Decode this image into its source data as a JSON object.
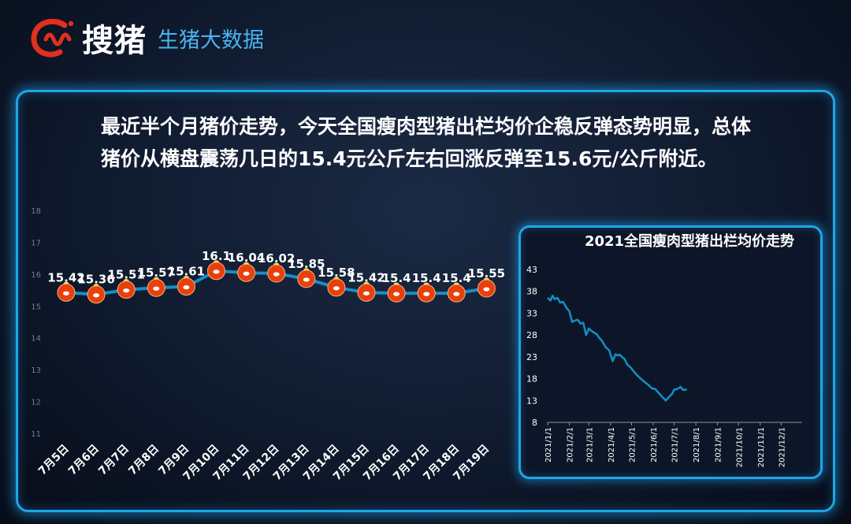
{
  "header": {
    "brand": "搜猪",
    "subtitle": "生猪大数据"
  },
  "description": "最近半个月猪价走势，今天全国瘦肉型猪出栏均价企稳反弹态势明显，总体猪价从横盘震荡几日的15.4元公斤左右回涨反弹至15.6元/公斤附近。",
  "colors": {
    "accent": "#1fa5e8",
    "line": "#1390c8",
    "marker": "#e8400c",
    "subtitle": "#4ab3f0"
  },
  "chart_data": [
    {
      "type": "line",
      "categories": [
        "7月5日",
        "7月6日",
        "7月7日",
        "7月8日",
        "7月9日",
        "7月10日",
        "7月11日",
        "7月12日",
        "7月13日",
        "7月14日",
        "7月15日",
        "7月16日",
        "7月17日",
        "7月18日",
        "7月19日"
      ],
      "values": [
        15.42,
        15.36,
        15.51,
        15.57,
        15.61,
        16.1,
        16.04,
        16.02,
        15.85,
        15.58,
        15.42,
        15.4,
        15.4,
        15.4,
        15.55
      ],
      "data_labels": [
        "15.42",
        "15.36",
        "15.51",
        "15.57",
        "15.61",
        "16.1",
        "16.04",
        "16.02",
        "15.85",
        "15.58",
        "15.42",
        "15.4",
        "15.4",
        "15.4",
        "15.55"
      ],
      "yticks": [
        "11",
        "12",
        "13",
        "14",
        "15",
        "16",
        "17",
        "18"
      ],
      "ylim": [
        11,
        18
      ],
      "marker": "pig-icon",
      "grid": false
    },
    {
      "type": "line",
      "title": "2021全国瘦肉型猪出栏均价走势",
      "x_start": "2021/1/1",
      "x_end": "2021/12/31",
      "x_ticks": [
        "2021/1/1",
        "2021/2/1",
        "2021/3/1",
        "2021/4/1",
        "2021/5/1",
        "2021/6/1",
        "2021/7/1",
        "2021/8/1",
        "2021/9/1",
        "2021/10/1",
        "2021/11/1",
        "2021/12/1"
      ],
      "yticks": [
        "8",
        "13",
        "18",
        "23",
        "28",
        "33",
        "38",
        "43"
      ],
      "ylim": [
        8,
        43
      ],
      "x": [
        "2021/1/1",
        "2021/1/5",
        "2021/1/8",
        "2021/1/11",
        "2021/1/15",
        "2021/1/19",
        "2021/1/23",
        "2021/1/28",
        "2021/2/1",
        "2021/2/5",
        "2021/2/9",
        "2021/2/13",
        "2021/2/17",
        "2021/2/21",
        "2021/2/25",
        "2021/3/1",
        "2021/3/4",
        "2021/3/8",
        "2021/3/12",
        "2021/3/16",
        "2021/3/20",
        "2021/3/25",
        "2021/3/30",
        "2021/4/4",
        "2021/4/8",
        "2021/4/11",
        "2021/4/14",
        "2021/4/17",
        "2021/4/21",
        "2021/4/25",
        "2021/4/30",
        "2021/5/5",
        "2021/5/10",
        "2021/5/15",
        "2021/5/20",
        "2021/5/25",
        "2021/5/30",
        "2021/6/4",
        "2021/6/9",
        "2021/6/14",
        "2021/6/19",
        "2021/6/24",
        "2021/6/28",
        "2021/7/1",
        "2021/7/5",
        "2021/7/10",
        "2021/7/14",
        "2021/7/19"
      ],
      "values": [
        36.5,
        35.9,
        37.0,
        36.2,
        36.5,
        35.4,
        35.6,
        34.2,
        33.5,
        31.0,
        31.3,
        31.5,
        30.6,
        30.8,
        28.0,
        29.5,
        29.0,
        28.6,
        28.2,
        27.3,
        26.6,
        25.2,
        24.5,
        22.0,
        23.6,
        23.3,
        23.5,
        23.0,
        22.5,
        21.2,
        20.5,
        19.5,
        18.6,
        17.9,
        17.2,
        16.6,
        15.8,
        15.6,
        14.7,
        13.8,
        13.0,
        13.9,
        14.5,
        15.5,
        15.6,
        16.1,
        15.4,
        15.55
      ],
      "grid": false
    }
  ]
}
